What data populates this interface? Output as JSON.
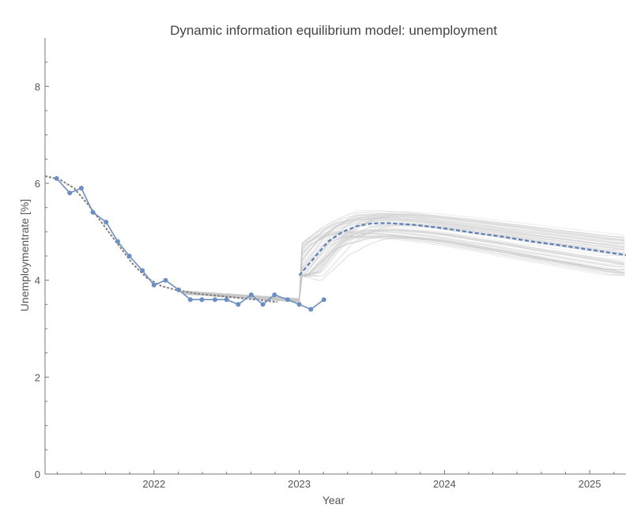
{
  "chart_data": {
    "type": "line",
    "title": "Dynamic information equilibrium model: unemployment",
    "xlabel": "Year",
    "ylabel": "Unemploymentrate [%]",
    "xlim": [
      2021.25,
      2025.25
    ],
    "ylim": [
      0,
      9
    ],
    "x_ticks": [
      "2022",
      "2023",
      "2024",
      "2025"
    ],
    "y_ticks": [
      "0",
      "2",
      "4",
      "6",
      "8"
    ],
    "grid": false,
    "legend": "none",
    "colors": {
      "data": "#6b8fc0",
      "forecast": "#5b7fb5",
      "model_fit": "#808080",
      "ensemble": "#c8c8c8"
    },
    "series": [
      {
        "style": "data-points-with-line",
        "x": [
          2021.33,
          2021.42,
          2021.5,
          2021.58,
          2021.67,
          2021.75,
          2021.83,
          2021.92,
          2022.0,
          2022.08,
          2022.17,
          2022.25,
          2022.33,
          2022.42,
          2022.5,
          2022.58,
          2022.67,
          2022.75,
          2022.83,
          2022.92,
          2023.0,
          2023.08,
          2023.17
        ],
        "y": [
          6.1,
          5.8,
          5.9,
          5.4,
          5.2,
          4.8,
          4.5,
          4.2,
          3.9,
          4.0,
          3.8,
          3.6,
          3.6,
          3.6,
          3.6,
          3.5,
          3.7,
          3.5,
          3.7,
          3.6,
          3.5,
          3.4,
          3.6
        ]
      },
      {
        "style": "model-fit-dashed-gray",
        "x": [
          2021.25,
          2021.35,
          2021.45,
          2021.55,
          2021.65,
          2021.75,
          2021.85,
          2021.95,
          2022.05,
          2022.15,
          2022.3,
          2022.5,
          2022.7,
          2022.85
        ],
        "y": [
          6.15,
          6.08,
          5.9,
          5.55,
          5.15,
          4.75,
          4.35,
          4.05,
          3.88,
          3.8,
          3.72,
          3.66,
          3.6,
          3.55
        ]
      },
      {
        "style": "forecast-dashed-blue",
        "x": [
          2023.0,
          2023.1,
          2023.2,
          2023.3,
          2023.4,
          2023.5,
          2023.6,
          2023.8,
          2024.0,
          2024.2,
          2024.4,
          2024.6,
          2024.8,
          2025.0,
          2025.25
        ],
        "y": [
          4.1,
          4.45,
          4.8,
          5.0,
          5.12,
          5.17,
          5.18,
          5.14,
          5.07,
          4.98,
          4.9,
          4.8,
          4.72,
          4.63,
          4.52
        ]
      }
    ]
  }
}
